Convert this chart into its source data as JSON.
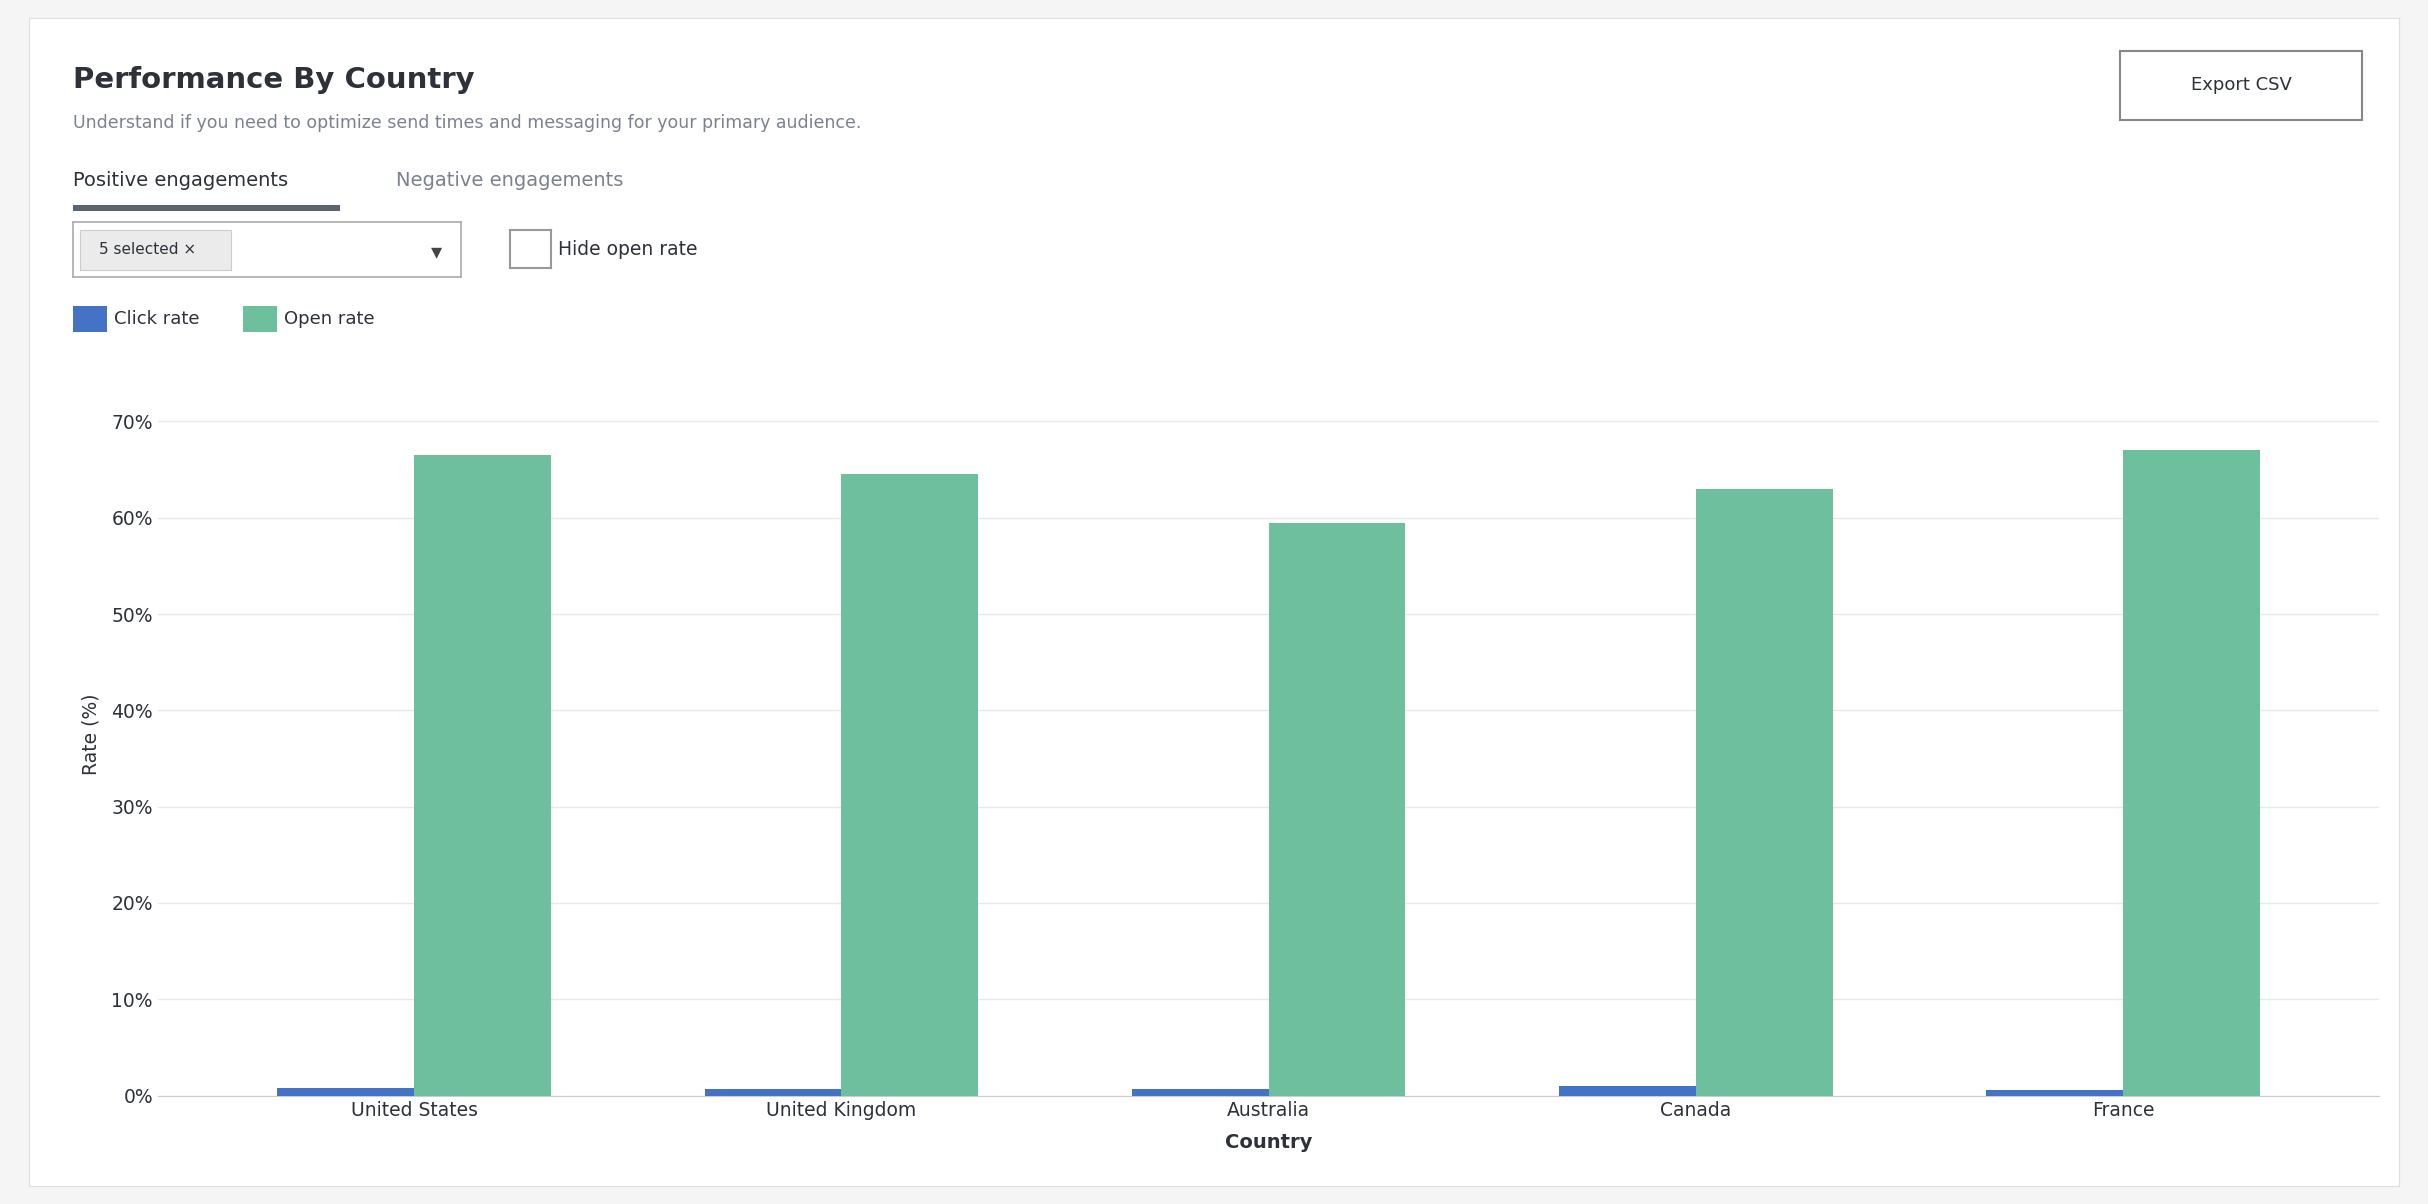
{
  "title": "Performance By Country",
  "subtitle": "Understand if you need to optimize send times and messaging for your primary audience.",
  "tab_active": "Positive engagements",
  "tab_inactive": "Negative engagements",
  "dropdown_label": "5 selected ×",
  "checkbox_label": "Hide open rate",
  "legend": [
    {
      "label": "Click rate",
      "color": "#4472C4"
    },
    {
      "label": "Open rate",
      "color": "#6DBF9E"
    }
  ],
  "countries": [
    "United States",
    "United Kingdom",
    "Australia",
    "Canada",
    "France"
  ],
  "click_rates": [
    0.8,
    0.7,
    0.7,
    1.0,
    0.6
  ],
  "open_rates": [
    66.5,
    64.5,
    59.5,
    63.0,
    67.0
  ],
  "ylabel": "Rate (%)",
  "xlabel": "Country",
  "ylim": [
    0,
    75
  ],
  "yticks": [
    0,
    10,
    20,
    30,
    40,
    50,
    60,
    70
  ],
  "ytick_labels": [
    "0%",
    "10%",
    "20%",
    "30%",
    "40%",
    "50%",
    "60%",
    "70%"
  ],
  "bar_width": 0.32,
  "bg_color": "#f5f5f5",
  "plot_bg_color": "#ffffff",
  "grid_color": "#e8e8e8",
  "axis_color": "#cccccc",
  "text_color": "#2d3139",
  "subtitle_color": "#7a8290",
  "tab_underline_color": "#5a6472",
  "export_btn_text": "Export CSV"
}
